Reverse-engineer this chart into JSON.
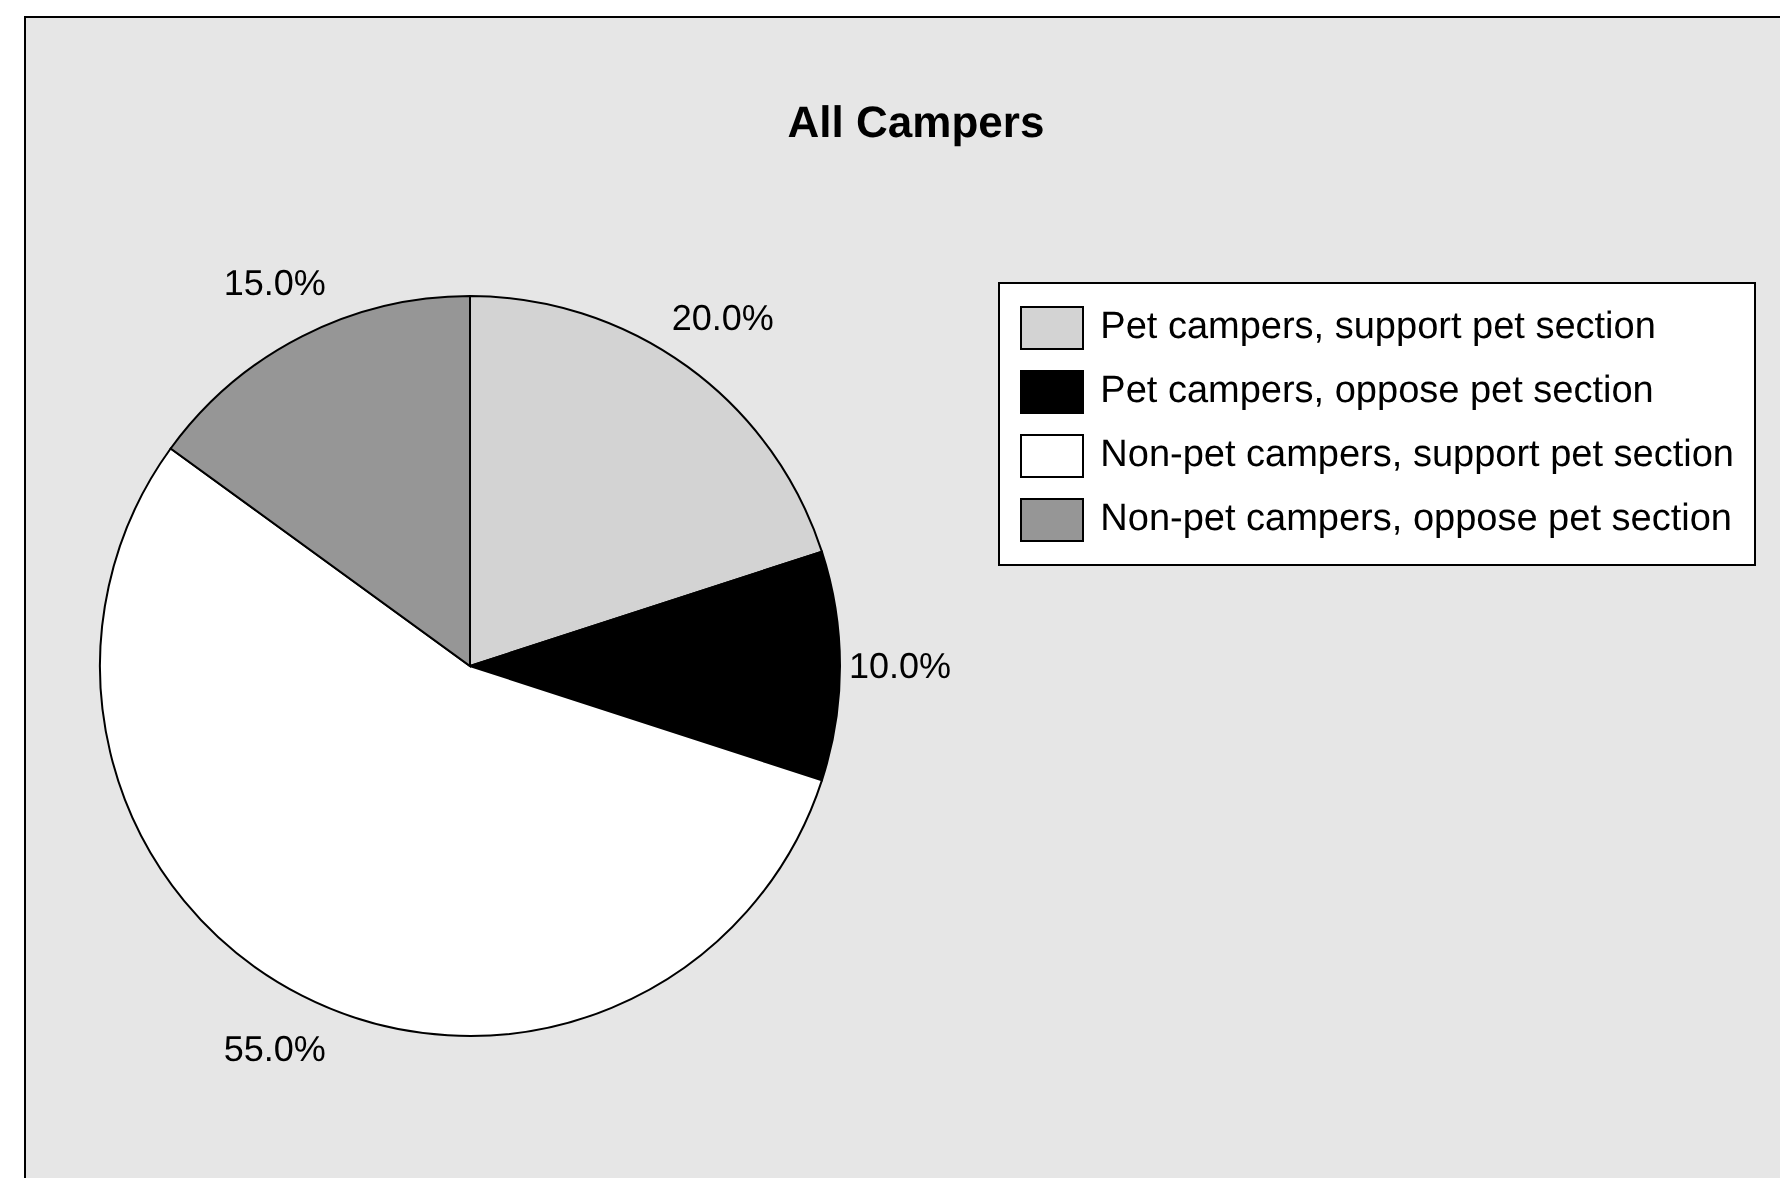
{
  "chart_data": {
    "type": "pie",
    "title": "All Campers",
    "categories": [
      "Pet campers, support pet section",
      "Pet campers, oppose pet section",
      "Non-pet campers, support pet section",
      "Non-pet campers, oppose pet section"
    ],
    "values": [
      20,
      10,
      55,
      15
    ],
    "colors": [
      "#d3d3d3",
      "#000000",
      "#ffffff",
      "#969696"
    ],
    "value_labels": [
      "20.0%",
      "10.0%",
      "55.0%",
      "15.0%"
    ],
    "legend": "right"
  }
}
